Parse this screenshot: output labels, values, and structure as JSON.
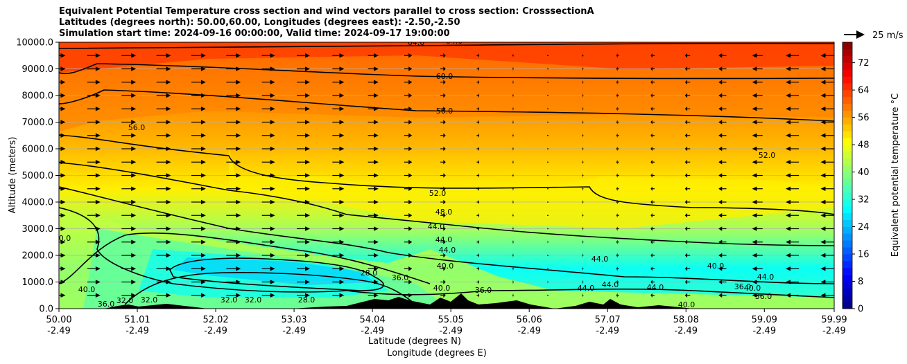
{
  "title_lines": [
    "Equivalent Potential Temperature cross section and wind vectors parallel to cross section: CrosssectionA",
    "Latitudes (degrees north): 50.00,60.00, Longitudes (degrees east): -2.50,-2.50",
    "Simulation start time: 2024-09-16 00:00:00, Valid time: 2024-09-17 19:00:00"
  ],
  "chart_data": {
    "type": "heatmap",
    "subtype": "cross-section filled contour with contour lines and wind vectors",
    "ylabel": "Altitude (meters)",
    "xlabel_lines": [
      "Latitude (degrees N)",
      "Longitude (degrees E)"
    ],
    "xlim": [
      50.0,
      59.99
    ],
    "ylim": [
      0,
      10000
    ],
    "x_ticks": [
      {
        "lat": "50.00",
        "lon": "-2.49"
      },
      {
        "lat": "51.01",
        "lon": "-2.49"
      },
      {
        "lat": "52.02",
        "lon": "-2.49"
      },
      {
        "lat": "53.03",
        "lon": "-2.49"
      },
      {
        "lat": "54.04",
        "lon": "-2.49"
      },
      {
        "lat": "55.05",
        "lon": "-2.49"
      },
      {
        "lat": "56.06",
        "lon": "-2.49"
      },
      {
        "lat": "57.07",
        "lon": "-2.49"
      },
      {
        "lat": "58.08",
        "lon": "-2.49"
      },
      {
        "lat": "59.09",
        "lon": "-2.49"
      },
      {
        "lat": "59.99",
        "lon": "-2.49"
      }
    ],
    "y_ticks": [
      "0.0",
      "1000.0",
      "2000.0",
      "3000.0",
      "4000.0",
      "5000.0",
      "6000.0",
      "7000.0",
      "8000.0",
      "9000.0",
      "10000.0"
    ],
    "y_tick_values": [
      0,
      1000,
      2000,
      3000,
      4000,
      5000,
      6000,
      7000,
      8000,
      9000,
      10000
    ],
    "grid": "horizontal",
    "colorbar": {
      "label": "Equivalent potential temperature °C",
      "range": [
        0,
        78
      ],
      "ticks": [
        "0",
        "8",
        "16",
        "24",
        "32",
        "40",
        "48",
        "56",
        "64",
        "72"
      ],
      "tick_values": [
        0,
        8,
        16,
        24,
        32,
        40,
        48,
        56,
        64,
        72
      ],
      "colormap": "jet"
    },
    "quiver_key": {
      "label": "25 m/s",
      "speed": 25
    },
    "contour_lines": [
      {
        "level": "32.0",
        "mean_height": 200
      },
      {
        "level": "36.0",
        "mean_height": 500
      },
      {
        "level": "40.0",
        "mean_height": 900
      },
      {
        "level": "44.0",
        "mean_height": 1800
      },
      {
        "level": "48.0",
        "mean_height": 2900
      },
      {
        "level": "52.0",
        "mean_height": 4200
      },
      {
        "level": "56.0",
        "mean_height": 7300
      },
      {
        "level": "60.0",
        "mean_height": 8600
      },
      {
        "level": "64.0",
        "mean_height": 9600
      }
    ],
    "contour_labels": [
      "64.0",
      "64.0",
      "60.0",
      "56.0",
      "56.0",
      "52.0",
      "52.0",
      "48.0",
      "44.0",
      "44.0",
      "44.0",
      "40.0",
      "40.0",
      "40.0",
      "40.0",
      "40.0",
      "44.0",
      "44.0",
      "44.0",
      "44.0",
      "44.0",
      "40.0",
      "36.0",
      "36.0",
      "36.0",
      "32.0",
      "32.0",
      "32.0",
      "32.0",
      "28.0",
      "28.0",
      "36.0",
      "36.0",
      "40.0"
    ],
    "theta_e_profile": [
      {
        "height": 0,
        "value": 34
      },
      {
        "height": 1500,
        "value": 30
      },
      {
        "height": 3000,
        "value": 42
      },
      {
        "height": 4500,
        "value": 50
      },
      {
        "height": 6000,
        "value": 54
      },
      {
        "height": 7500,
        "value": 57
      },
      {
        "height": 9000,
        "value": 63
      },
      {
        "height": 10000,
        "value": 68
      }
    ],
    "wind_rows_height": [
      500,
      1000,
      1500,
      2000,
      2500,
      3000,
      3500,
      4000,
      4500,
      5000,
      5500,
      6000,
      6500,
      7000,
      7500,
      8000,
      8500,
      9000,
      9500
    ],
    "wind_columns_lat": [
      50.0,
      50.45,
      50.9,
      51.35,
      51.8,
      52.25,
      52.7,
      53.15,
      53.6,
      54.05,
      54.5,
      54.95,
      55.4,
      55.85,
      56.3,
      56.75,
      57.2,
      57.65,
      58.1,
      58.55,
      59.0,
      59.45,
      59.9
    ],
    "wind_u_by_column": [
      10,
      10,
      11,
      11,
      11,
      11,
      10,
      10,
      9,
      8,
      6,
      4,
      2,
      1,
      0,
      -1,
      -2,
      -3,
      -4,
      -6,
      -8,
      -10,
      -10
    ]
  }
}
